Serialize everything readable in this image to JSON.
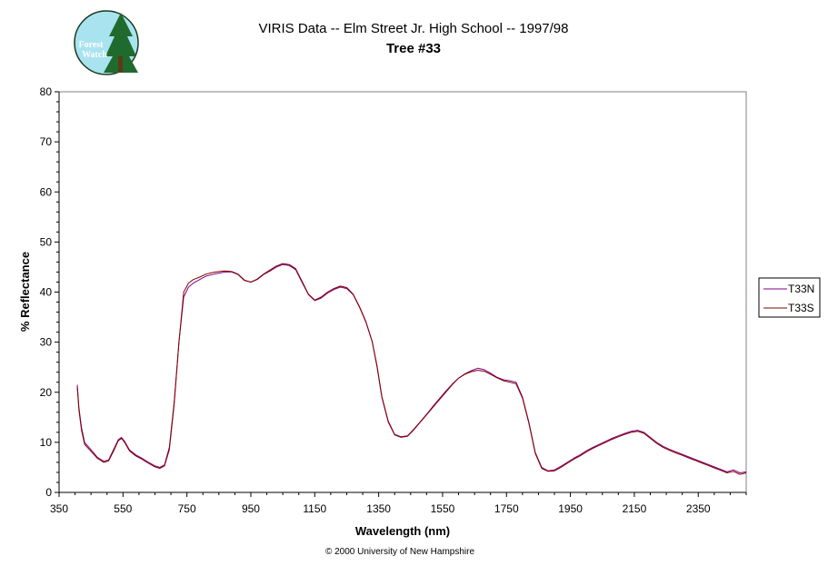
{
  "header": {
    "title_line1": "VIRIS Data -- Elm Street Jr. High School -- 1997/98",
    "title_line2": "Tree #33"
  },
  "logo": {
    "line1": "Forest",
    "line2": "Watch",
    "icon": "forest-watch-logo-icon"
  },
  "footer": {
    "copyright": "© 2000 University of New Hampshire"
  },
  "chart_data": {
    "type": "line",
    "title": "VIRIS Data -- Elm Street Jr. High School -- 1997/98",
    "subtitle": "Tree #33",
    "xlabel": "Wavelength (nm)",
    "ylabel": "% Reflectance",
    "xlim": [
      350,
      2500
    ],
    "ylim": [
      0,
      80
    ],
    "x_ticks": [
      350,
      550,
      750,
      950,
      1150,
      1350,
      1550,
      1750,
      1950,
      2150,
      2350
    ],
    "y_ticks": [
      0,
      10,
      20,
      30,
      40,
      50,
      60,
      70,
      80
    ],
    "grid": false,
    "legend_position": "right",
    "series": [
      {
        "name": "T33N",
        "color": "#800080",
        "points": [
          [
            407,
            21.5
          ],
          [
            412,
            17
          ],
          [
            420,
            13
          ],
          [
            430,
            10
          ],
          [
            450,
            8.5
          ],
          [
            470,
            7
          ],
          [
            490,
            6.2
          ],
          [
            505,
            6.5
          ],
          [
            520,
            8.5
          ],
          [
            535,
            10.5
          ],
          [
            545,
            11
          ],
          [
            555,
            10.2
          ],
          [
            570,
            8.5
          ],
          [
            590,
            7.5
          ],
          [
            610,
            6.8
          ],
          [
            630,
            6
          ],
          [
            650,
            5.3
          ],
          [
            665,
            5
          ],
          [
            680,
            5.5
          ],
          [
            695,
            9
          ],
          [
            710,
            18
          ],
          [
            725,
            30
          ],
          [
            740,
            39
          ],
          [
            755,
            41
          ],
          [
            770,
            41.8
          ],
          [
            790,
            42.5
          ],
          [
            810,
            43.2
          ],
          [
            830,
            43.5
          ],
          [
            850,
            43.8
          ],
          [
            870,
            44
          ],
          [
            890,
            44
          ],
          [
            910,
            43.5
          ],
          [
            930,
            42.3
          ],
          [
            950,
            42
          ],
          [
            970,
            42.5
          ],
          [
            990,
            43.5
          ],
          [
            1010,
            44.2
          ],
          [
            1030,
            45
          ],
          [
            1050,
            45.5
          ],
          [
            1070,
            45.3
          ],
          [
            1090,
            44.5
          ],
          [
            1110,
            42
          ],
          [
            1130,
            39.5
          ],
          [
            1150,
            38.3
          ],
          [
            1170,
            38.8
          ],
          [
            1190,
            39.8
          ],
          [
            1210,
            40.5
          ],
          [
            1230,
            41
          ],
          [
            1250,
            40.7
          ],
          [
            1270,
            39.5
          ],
          [
            1290,
            37
          ],
          [
            1310,
            34
          ],
          [
            1330,
            30
          ],
          [
            1345,
            25
          ],
          [
            1360,
            19
          ],
          [
            1380,
            14
          ],
          [
            1400,
            11.5
          ],
          [
            1420,
            11
          ],
          [
            1440,
            11.2
          ],
          [
            1460,
            12.5
          ],
          [
            1480,
            14
          ],
          [
            1500,
            15.5
          ],
          [
            1520,
            17
          ],
          [
            1540,
            18.5
          ],
          [
            1560,
            20
          ],
          [
            1580,
            21.5
          ],
          [
            1600,
            22.8
          ],
          [
            1620,
            23.7
          ],
          [
            1640,
            24.3
          ],
          [
            1660,
            24.8
          ],
          [
            1680,
            24.5
          ],
          [
            1700,
            23.8
          ],
          [
            1720,
            23
          ],
          [
            1740,
            22.5
          ],
          [
            1760,
            22.3
          ],
          [
            1780,
            22
          ],
          [
            1800,
            19
          ],
          [
            1820,
            14
          ],
          [
            1840,
            8
          ],
          [
            1860,
            5
          ],
          [
            1880,
            4.3
          ],
          [
            1900,
            4.5
          ],
          [
            1920,
            5.2
          ],
          [
            1940,
            6
          ],
          [
            1960,
            6.8
          ],
          [
            1980,
            7.5
          ],
          [
            2000,
            8.3
          ],
          [
            2020,
            9
          ],
          [
            2040,
            9.6
          ],
          [
            2060,
            10.2
          ],
          [
            2080,
            10.8
          ],
          [
            2100,
            11.3
          ],
          [
            2120,
            11.8
          ],
          [
            2140,
            12.2
          ],
          [
            2160,
            12.4
          ],
          [
            2180,
            12
          ],
          [
            2200,
            11
          ],
          [
            2220,
            10
          ],
          [
            2240,
            9.2
          ],
          [
            2260,
            8.6
          ],
          [
            2280,
            8.1
          ],
          [
            2300,
            7.6
          ],
          [
            2320,
            7.1
          ],
          [
            2340,
            6.6
          ],
          [
            2360,
            6.1
          ],
          [
            2380,
            5.6
          ],
          [
            2400,
            5.1
          ],
          [
            2420,
            4.6
          ],
          [
            2440,
            4.1
          ],
          [
            2460,
            4.5
          ],
          [
            2480,
            3.9
          ],
          [
            2500,
            4.1
          ]
        ]
      },
      {
        "name": "T33S",
        "color": "#800000",
        "points": [
          [
            407,
            21
          ],
          [
            412,
            16.5
          ],
          [
            420,
            12.5
          ],
          [
            430,
            9.6
          ],
          [
            450,
            8.2
          ],
          [
            470,
            6.8
          ],
          [
            490,
            6
          ],
          [
            505,
            6.3
          ],
          [
            520,
            8.2
          ],
          [
            535,
            10.3
          ],
          [
            545,
            10.8
          ],
          [
            555,
            10
          ],
          [
            570,
            8.3
          ],
          [
            590,
            7.3
          ],
          [
            610,
            6.6
          ],
          [
            630,
            5.8
          ],
          [
            650,
            5.1
          ],
          [
            665,
            4.8
          ],
          [
            680,
            5.3
          ],
          [
            695,
            8.5
          ],
          [
            710,
            17.5
          ],
          [
            725,
            30
          ],
          [
            740,
            40
          ],
          [
            755,
            41.8
          ],
          [
            770,
            42.5
          ],
          [
            790,
            43
          ],
          [
            810,
            43.6
          ],
          [
            830,
            43.9
          ],
          [
            850,
            44.1
          ],
          [
            870,
            44.2
          ],
          [
            890,
            44.1
          ],
          [
            910,
            43.6
          ],
          [
            930,
            42.4
          ],
          [
            950,
            42
          ],
          [
            970,
            42.6
          ],
          [
            990,
            43.6
          ],
          [
            1010,
            44.4
          ],
          [
            1030,
            45.2
          ],
          [
            1050,
            45.7
          ],
          [
            1070,
            45.5
          ],
          [
            1090,
            44.7
          ],
          [
            1110,
            42.2
          ],
          [
            1130,
            39.6
          ],
          [
            1150,
            38.4
          ],
          [
            1170,
            39
          ],
          [
            1190,
            40
          ],
          [
            1210,
            40.7
          ],
          [
            1230,
            41.2
          ],
          [
            1250,
            40.9
          ],
          [
            1270,
            39.6
          ],
          [
            1290,
            37.1
          ],
          [
            1310,
            34.1
          ],
          [
            1330,
            30.1
          ],
          [
            1345,
            25.2
          ],
          [
            1360,
            19.2
          ],
          [
            1380,
            14.2
          ],
          [
            1400,
            11.6
          ],
          [
            1420,
            11.1
          ],
          [
            1440,
            11.3
          ],
          [
            1460,
            12.6
          ],
          [
            1480,
            14.1
          ],
          [
            1500,
            15.6
          ],
          [
            1520,
            17.2
          ],
          [
            1540,
            18.7
          ],
          [
            1560,
            20.2
          ],
          [
            1580,
            21.6
          ],
          [
            1600,
            22.8
          ],
          [
            1620,
            23.6
          ],
          [
            1640,
            24.1
          ],
          [
            1660,
            24.4
          ],
          [
            1680,
            24.2
          ],
          [
            1700,
            23.6
          ],
          [
            1720,
            22.9
          ],
          [
            1740,
            22.3
          ],
          [
            1760,
            22
          ],
          [
            1780,
            21.7
          ],
          [
            1800,
            18.8
          ],
          [
            1820,
            13.8
          ],
          [
            1840,
            7.8
          ],
          [
            1860,
            4.8
          ],
          [
            1880,
            4.2
          ],
          [
            1900,
            4.3
          ],
          [
            1920,
            5
          ],
          [
            1940,
            5.8
          ],
          [
            1960,
            6.6
          ],
          [
            1980,
            7.3
          ],
          [
            2000,
            8.1
          ],
          [
            2020,
            8.8
          ],
          [
            2040,
            9.4
          ],
          [
            2060,
            10
          ],
          [
            2080,
            10.6
          ],
          [
            2100,
            11.1
          ],
          [
            2120,
            11.6
          ],
          [
            2140,
            12
          ],
          [
            2160,
            12.2
          ],
          [
            2180,
            11.8
          ],
          [
            2200,
            10.8
          ],
          [
            2220,
            9.8
          ],
          [
            2240,
            9
          ],
          [
            2260,
            8.4
          ],
          [
            2280,
            7.9
          ],
          [
            2300,
            7.4
          ],
          [
            2320,
            6.9
          ],
          [
            2340,
            6.4
          ],
          [
            2360,
            5.9
          ],
          [
            2380,
            5.4
          ],
          [
            2400,
            4.9
          ],
          [
            2420,
            4.4
          ],
          [
            2440,
            3.9
          ],
          [
            2460,
            4.2
          ],
          [
            2480,
            3.6
          ],
          [
            2500,
            3.9
          ]
        ]
      }
    ]
  }
}
